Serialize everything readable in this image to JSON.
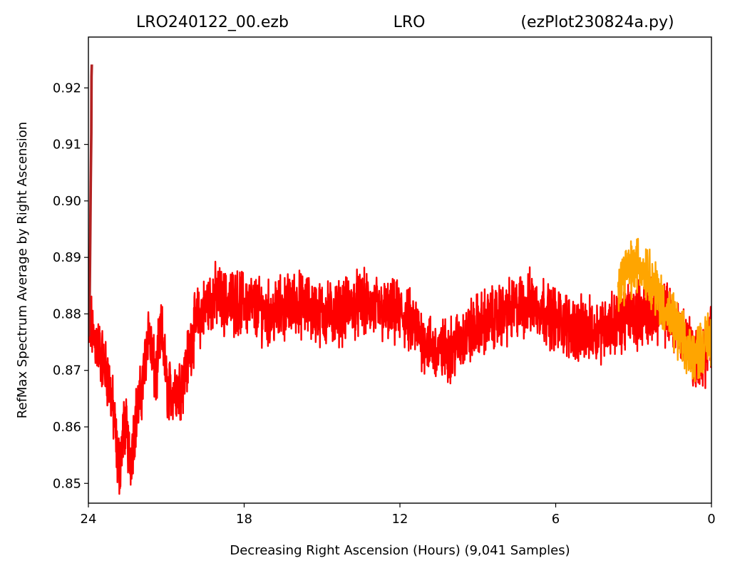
{
  "chart_data": {
    "type": "line",
    "title_parts": [
      "LRO240122_00.ezb",
      "LRO",
      "(ezPlot230824a.py)"
    ],
    "xlabel": "Decreasing Right Ascension (Hours) (9,041 Samples)",
    "ylabel": "RefMax Spectrum Average by Right Ascension",
    "xlim": [
      24,
      0
    ],
    "ylim": [
      0.8465,
      0.929
    ],
    "x_ticks": [
      24,
      18,
      12,
      6,
      0
    ],
    "x_tick_labels": [
      "24",
      "18",
      "12",
      "6",
      "0"
    ],
    "y_ticks": [
      0.85,
      0.86,
      0.87,
      0.88,
      0.89,
      0.9,
      0.91,
      0.92
    ],
    "y_tick_labels": [
      "0.85",
      "0.86",
      "0.87",
      "0.88",
      "0.89",
      "0.90",
      "0.91",
      "0.92"
    ],
    "grid": false,
    "series": [
      {
        "color": "#ff0000",
        "x": [
          24.0,
          23.9,
          23.8,
          23.6,
          23.4,
          23.2,
          23.0,
          22.9,
          22.8,
          22.7,
          22.6,
          22.5,
          22.4,
          22.3,
          22.2,
          22.1,
          22.0,
          21.9,
          21.8,
          21.7,
          21.6,
          21.5,
          21.4,
          21.3,
          21.2,
          21.1,
          21.0,
          20.9,
          20.7,
          20.5,
          20.3,
          20.0,
          19.8,
          19.6,
          19.4,
          19.2,
          19.0,
          18.8,
          18.6,
          18.4,
          18.0,
          17.5,
          17.0,
          16.5,
          16.0,
          15.5,
          15.0,
          14.5,
          14.0,
          13.5,
          13.0,
          12.5,
          12.0,
          11.5,
          11.0,
          10.5,
          10.0,
          9.5,
          9.0,
          8.5,
          8.0,
          7.5,
          7.0,
          6.5,
          6.0,
          5.5,
          5.0,
          4.5,
          4.0,
          3.5,
          3.0,
          2.5,
          2.0,
          1.5,
          1.2,
          1.0,
          0.8,
          0.6,
          0.4,
          0.2,
          0.0
        ],
        "y": [
          0.875,
          0.878,
          0.876,
          0.874,
          0.871,
          0.868,
          0.861,
          0.855,
          0.853,
          0.857,
          0.861,
          0.858,
          0.854,
          0.857,
          0.861,
          0.863,
          0.865,
          0.868,
          0.872,
          0.878,
          0.874,
          0.871,
          0.868,
          0.873,
          0.877,
          0.874,
          0.868,
          0.866,
          0.867,
          0.867,
          0.869,
          0.876,
          0.879,
          0.88,
          0.882,
          0.883,
          0.883,
          0.882,
          0.882,
          0.882,
          0.882,
          0.881,
          0.88,
          0.881,
          0.882,
          0.881,
          0.88,
          0.88,
          0.881,
          0.882,
          0.881,
          0.88,
          0.88,
          0.878,
          0.875,
          0.873,
          0.874,
          0.876,
          0.878,
          0.879,
          0.88,
          0.881,
          0.882,
          0.881,
          0.879,
          0.878,
          0.877,
          0.877,
          0.878,
          0.879,
          0.88,
          0.88,
          0.881,
          0.879,
          0.877,
          0.876,
          0.874,
          0.872,
          0.871,
          0.873,
          0.876
        ]
      },
      {
        "color": "#ffa500",
        "x": [
          3.6,
          3.4,
          3.2,
          3.0,
          2.8,
          2.6,
          2.4,
          2.2,
          2.0,
          1.8,
          1.6,
          1.4,
          1.2,
          1.0,
          0.8,
          0.6,
          0.4,
          0.2,
          0.0
        ],
        "y": [
          0.886,
          0.887,
          0.888,
          0.888,
          0.889,
          0.888,
          0.887,
          0.885,
          0.883,
          0.881,
          0.879,
          0.878,
          0.876,
          0.874,
          0.873,
          0.873,
          0.874,
          0.875,
          0.876
        ]
      }
    ],
    "spike": {
      "color": "#b22222",
      "x": [
        24.0,
        23.97,
        23.95,
        23.93,
        23.91,
        23.9,
        23.89
      ],
      "y": [
        0.876,
        0.884,
        0.893,
        0.903,
        0.912,
        0.922,
        0.924
      ]
    }
  }
}
